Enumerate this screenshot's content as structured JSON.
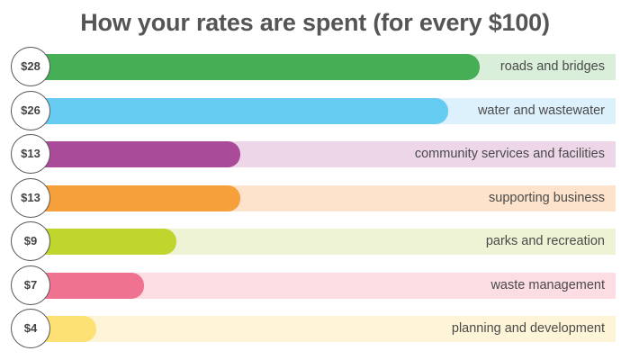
{
  "chart_data": {
    "type": "bar",
    "orientation": "horizontal",
    "title": "How your rates are spent (for every $100)",
    "xlabel": "",
    "ylabel": "",
    "xlim": [
      0,
      36.5
    ],
    "grid": false,
    "legend": "none",
    "categories": [
      "roads and bridges",
      "water and wastewater",
      "community services and facilities",
      "supporting business",
      "parks and recreation",
      "waste management",
      "planning and development"
    ],
    "values": [
      28,
      26,
      13,
      13,
      9,
      7,
      4
    ],
    "value_labels": [
      "$28",
      "$26",
      "$13",
      "$13",
      "$9",
      "$7",
      "$4"
    ],
    "colors": [
      "#46ae54",
      "#66cbf1",
      "#aa4b99",
      "#f5a03a",
      "#c1d52f",
      "#ef7390",
      "#fde175"
    ],
    "track_colors": [
      "#d9efd9",
      "#dcf1fb",
      "#ecd6e7",
      "#fde3cc",
      "#eef3d6",
      "#fcdde3",
      "#fef5d8"
    ]
  }
}
